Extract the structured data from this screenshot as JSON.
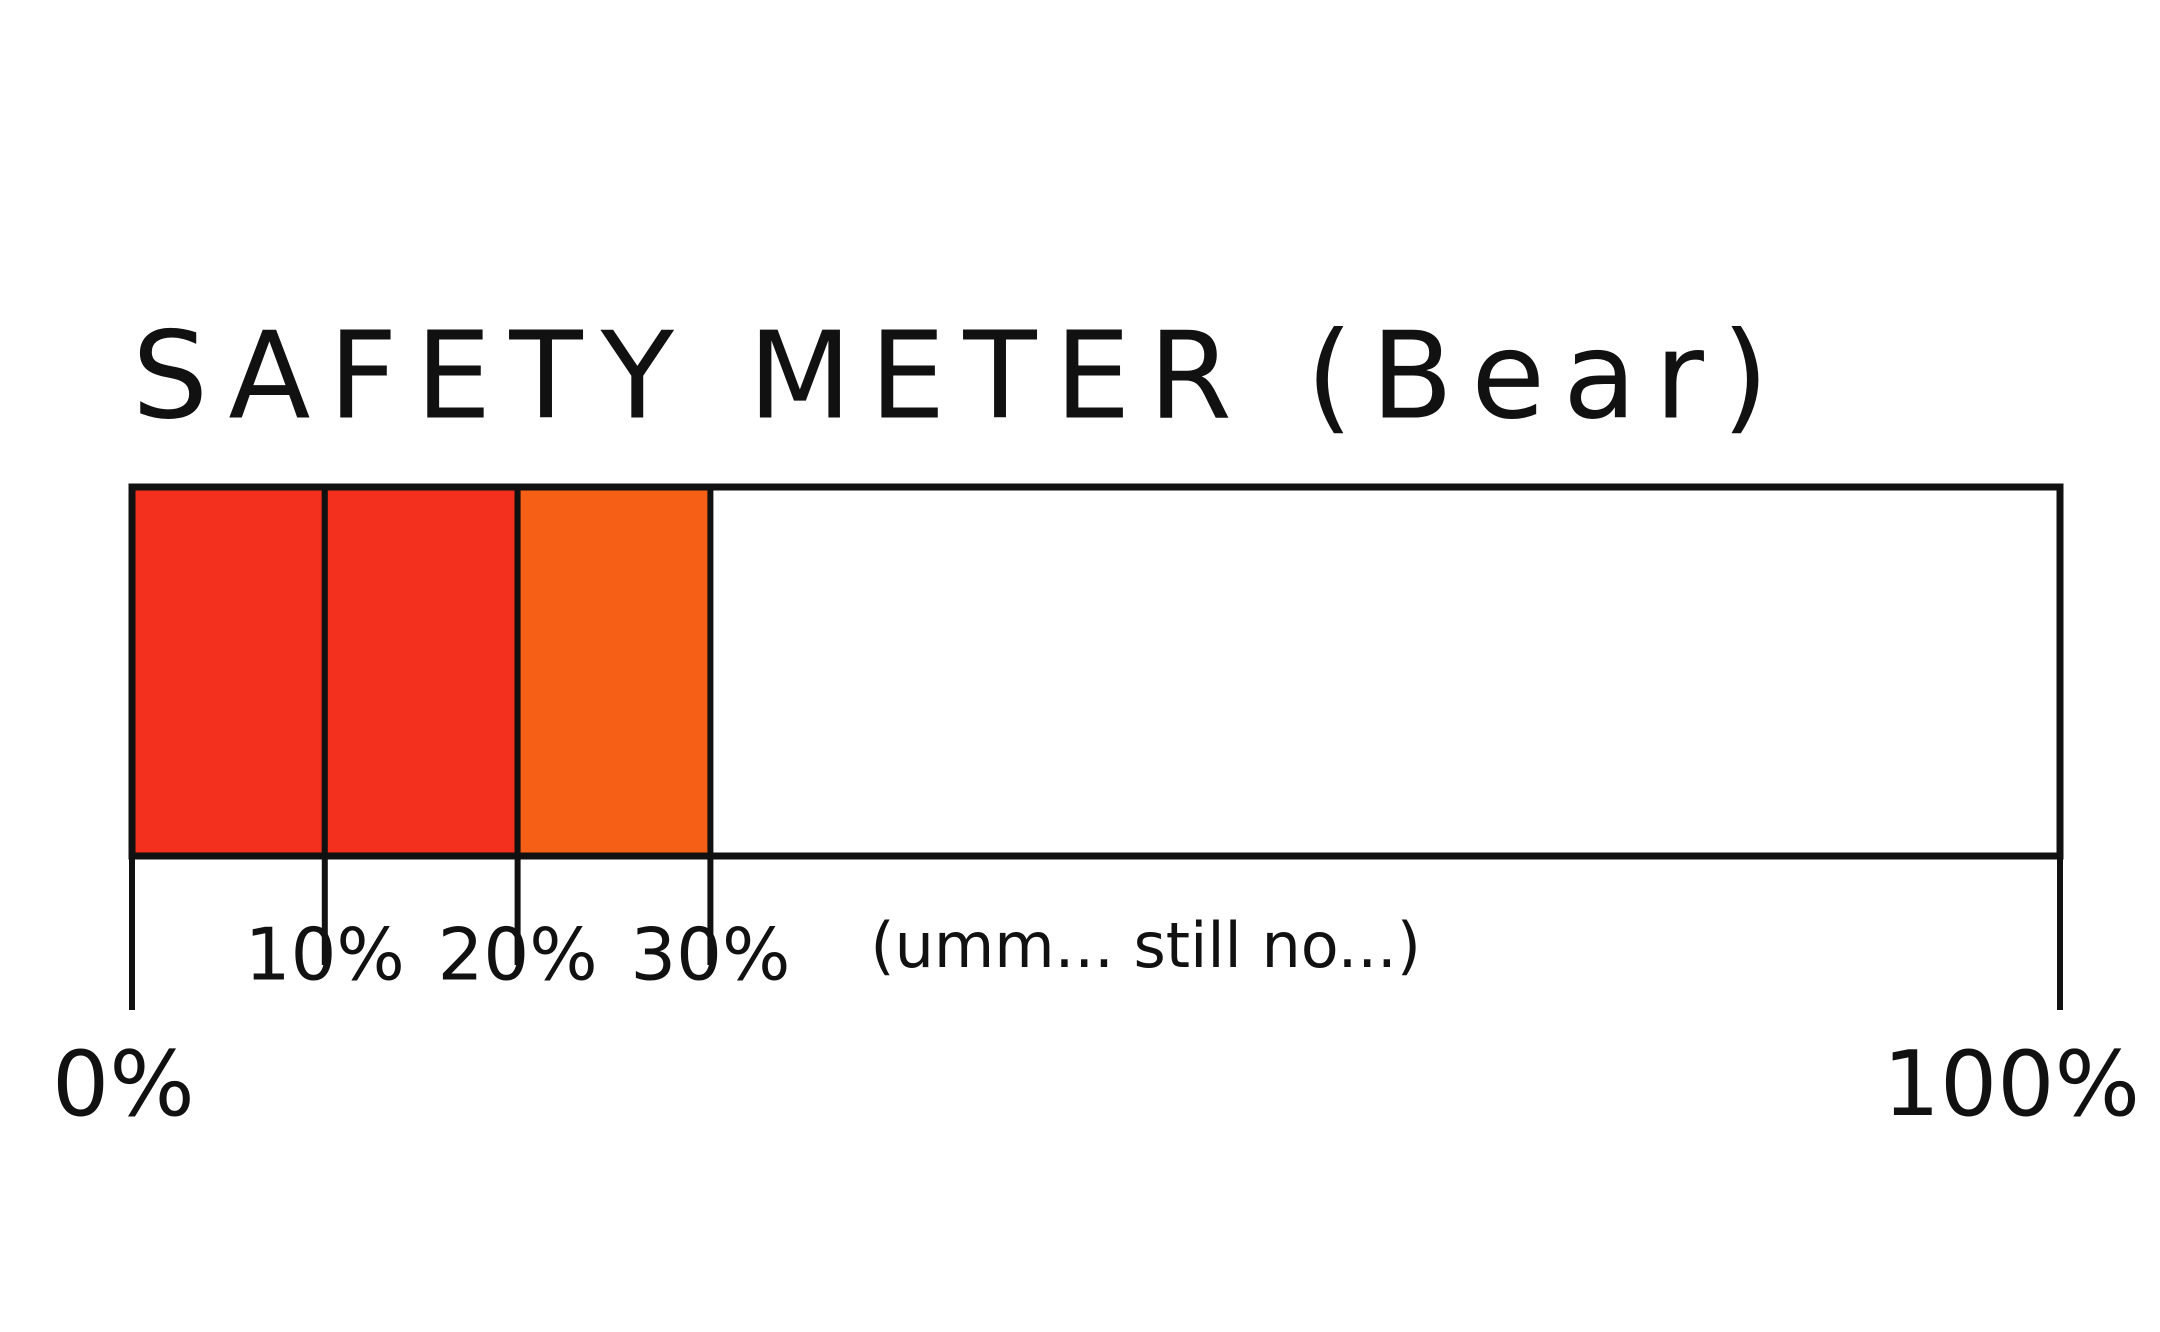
{
  "chart_data": {
    "type": "meter",
    "title": "SAFETY METER (Bear)",
    "segments": [
      {
        "value": 10,
        "color": "#f2301d"
      },
      {
        "value": 10,
        "color": "#f2301d"
      },
      {
        "value": 10,
        "color": "#f56016"
      }
    ],
    "xlim": [
      0,
      100
    ],
    "xticks": [
      {
        "value": 0,
        "label": "0%"
      },
      {
        "value": 10,
        "label": "10%"
      },
      {
        "value": 20,
        "label": "20%"
      },
      {
        "value": 30,
        "label": "30%"
      },
      {
        "value": 100,
        "label": "100%"
      }
    ],
    "annotation": "(umm... still no...)"
  }
}
